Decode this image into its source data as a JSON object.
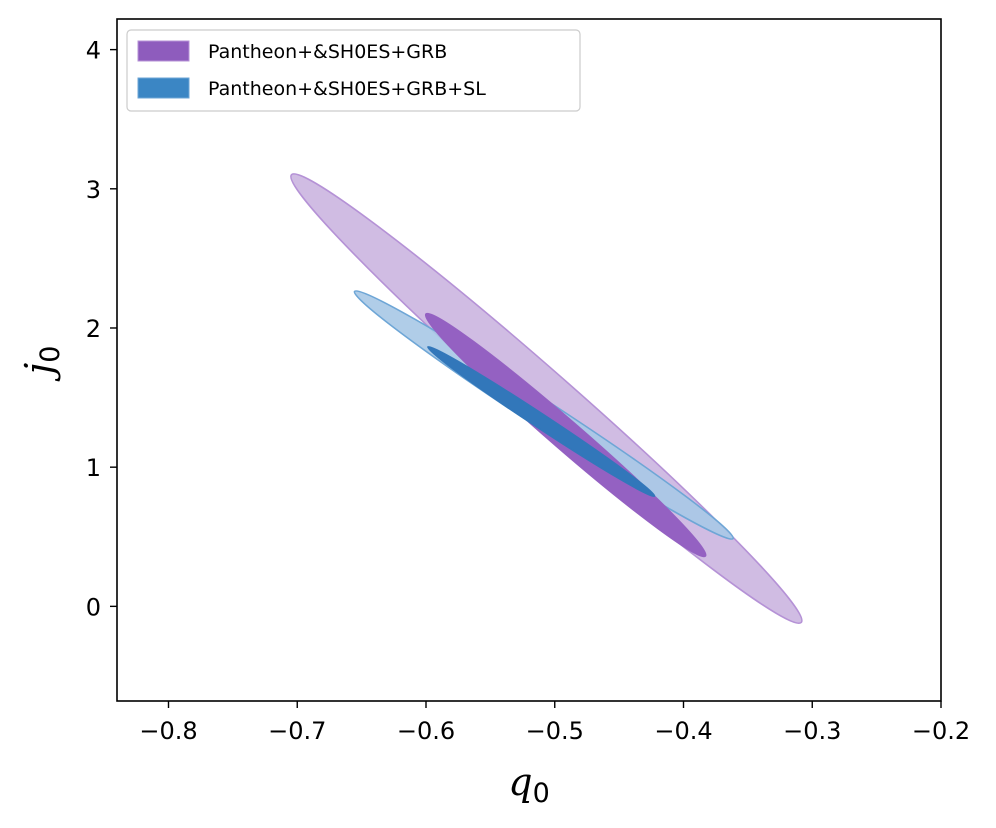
{
  "chart_data": {
    "type": "contour",
    "title": "",
    "xlabel": {
      "base": "q",
      "sub": "0"
    },
    "ylabel": {
      "base": "j",
      "sub": "0"
    },
    "xlim": [
      -0.84,
      -0.2
    ],
    "ylim": [
      -0.68,
      4.22
    ],
    "xticks": [
      -0.8,
      -0.7,
      -0.6,
      -0.5,
      -0.4,
      -0.3,
      -0.2
    ],
    "xtick_labels": [
      "−0.8",
      "−0.7",
      "−0.6",
      "−0.5",
      "−0.4",
      "−0.3",
      "−0.2"
    ],
    "yticks": [
      0,
      1,
      2,
      3,
      4
    ],
    "ytick_labels": [
      "0",
      "1",
      "2",
      "3",
      "4"
    ],
    "legend_position": "upper-left",
    "series": [
      {
        "name": "Pantheon+&SH0ES+GRB",
        "color": "#8e5cbd",
        "contours": [
          {
            "level": "2sigma",
            "center": [
              -0.5066,
              1.493
            ],
            "vertices": [
              [
                -0.7045,
                3.101
              ],
              [
                -0.3085,
                -0.115
              ]
            ],
            "co_vertex_halfwidth_q": 0.0305,
            "fill": "#d0bce3",
            "stroke": "#b592d6"
          },
          {
            "level": "1sigma",
            "center": [
              -0.4915,
              1.231
            ],
            "vertices": [
              [
                -0.6,
                2.1
              ],
              [
                -0.383,
                0.362
              ]
            ],
            "co_vertex_halfwidth_q": 0.0173,
            "fill": "#9461c2",
            "stroke": "#9461c2"
          }
        ]
      },
      {
        "name": "Pantheon+&SH0ES+GRB+SL",
        "color": "#3b86c4",
        "contours": [
          {
            "level": "2sigma",
            "center": [
              -0.5085,
              1.375
            ],
            "vertices": [
              [
                -0.6555,
                2.263
              ],
              [
                -0.3615,
                0.487
              ]
            ],
            "co_vertex_halfwidth_q": 0.0195,
            "fill": "#a7c8e5",
            "stroke": "#6ea6d6"
          },
          {
            "level": "1sigma",
            "center": [
              -0.5105,
              1.328
            ],
            "vertices": [
              [
                -0.5985,
                1.864
              ],
              [
                -0.4225,
                0.792
              ]
            ],
            "co_vertex_halfwidth_q": 0.0098,
            "fill": "#3277ba",
            "stroke": "#3277ba"
          }
        ]
      }
    ]
  }
}
